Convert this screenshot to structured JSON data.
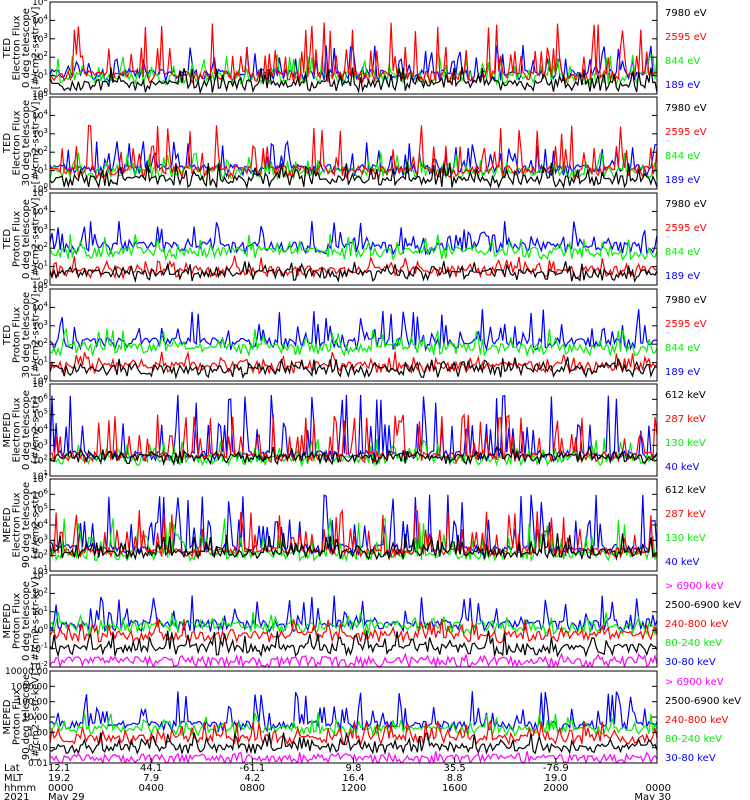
{
  "colors": {
    "blue": "#0000ff",
    "red": "#ff0000",
    "green": "#00ee00",
    "black": "#000000",
    "magenta": "#ff00ff"
  },
  "chart_data": [
    {
      "type": "line",
      "ylabel": [
        "TED",
        "Electron Flux",
        "0 deg telescope",
        "[#/cm2-s-str-eV]"
      ],
      "yscale": "log",
      "ylim": [
        1,
        100000
      ],
      "tick_labels": [
        "10^0",
        "10^1",
        "10^2",
        "10^3",
        "10^4",
        "10^5"
      ],
      "series": [
        {
          "name": "7980 eV",
          "color": "#000000",
          "base": 3,
          "spike": 30
        },
        {
          "name": "2595 eV",
          "color": "#ff0000",
          "base": 10,
          "spike": 8000
        },
        {
          "name": "844 eV",
          "color": "#00ee00",
          "base": 8,
          "spike": 150
        },
        {
          "name": "189 eV",
          "color": "#0000ff",
          "base": 12,
          "spike": 500
        }
      ]
    },
    {
      "type": "line",
      "ylabel": [
        "TED",
        "Electron Flux",
        "30 deg telescope",
        "[#/cm2-s-str-eV]"
      ],
      "yscale": "log",
      "ylim": [
        1,
        100000
      ],
      "tick_labels": [
        "10^0",
        "10^1",
        "10^2",
        "10^3",
        "10^4",
        "10^5"
      ],
      "series": [
        {
          "name": "7980 eV",
          "color": "#000000",
          "base": 3,
          "spike": 30
        },
        {
          "name": "2595 eV",
          "color": "#ff0000",
          "base": 10,
          "spike": 3000
        },
        {
          "name": "844 eV",
          "color": "#00ee00",
          "base": 8,
          "spike": 100
        },
        {
          "name": "189 eV",
          "color": "#0000ff",
          "base": 12,
          "spike": 400
        }
      ]
    },
    {
      "type": "line",
      "ylabel": [
        "TED",
        "Proton Flux",
        "0 deg telescope",
        "[#/cm2-s-str-eV]"
      ],
      "yscale": "log",
      "ylim": [
        1,
        100000
      ],
      "tick_labels": [
        "10^0",
        "10^1",
        "10^2",
        "10^3",
        "10^4",
        "10^5"
      ],
      "series": [
        {
          "name": "7980 eV",
          "color": "#000000",
          "base": 4,
          "spike": 20
        },
        {
          "name": "2595 eV",
          "color": "#ff0000",
          "base": 6,
          "spike": 40
        },
        {
          "name": "844 eV",
          "color": "#00ee00",
          "base": 60,
          "spike": 600
        },
        {
          "name": "189 eV",
          "color": "#0000ff",
          "base": 120,
          "spike": 3000
        }
      ]
    },
    {
      "type": "line",
      "ylabel": [
        "TED",
        "Proton Flux",
        "30 deg telescope",
        "[#/cm2-s-str-eV]"
      ],
      "yscale": "log",
      "ylim": [
        1,
        100000
      ],
      "tick_labels": [
        "10^0",
        "10^1",
        "10^2",
        "10^3",
        "10^4",
        "10^5"
      ],
      "series": [
        {
          "name": "7980 eV",
          "color": "#000000",
          "base": 4,
          "spike": 20
        },
        {
          "name": "2595 eV",
          "color": "#ff0000",
          "base": 6,
          "spike": 40
        },
        {
          "name": "844 eV",
          "color": "#00ee00",
          "base": 60,
          "spike": 700
        },
        {
          "name": "189 eV",
          "color": "#0000ff",
          "base": 120,
          "spike": 8000
        }
      ]
    },
    {
      "type": "line",
      "ylabel": [
        "MEPED",
        "Electron Flux",
        "0 deg telescope",
        "[#/cm2-s-str]"
      ],
      "yscale": "log",
      "ylim": [
        10,
        10000000
      ],
      "tick_labels": [
        "10^1",
        "10^2",
        "10^3",
        "10^4",
        "10^5",
        "10^6",
        "10^7"
      ],
      "series": [
        {
          "name": "612 keV",
          "color": "#000000",
          "base": 150,
          "spike": 800
        },
        {
          "name": "287 keV",
          "color": "#ff0000",
          "base": 200,
          "spike": 100000
        },
        {
          "name": "130 keV",
          "color": "#00ee00",
          "base": 120,
          "spike": 3000
        },
        {
          "name": "40 keV",
          "color": "#0000ff",
          "base": 250,
          "spike": 2000000
        }
      ]
    },
    {
      "type": "line",
      "ylabel": [
        "MEPED",
        "Electron Flux",
        "90 deg telescope",
        "[#/cm2-s-str]"
      ],
      "yscale": "log",
      "ylim": [
        10,
        10000000
      ],
      "tick_labels": [
        "10^1",
        "10^2",
        "10^3",
        "10^4",
        "10^5",
        "10^6",
        "10^7"
      ],
      "series": [
        {
          "name": "612 keV",
          "color": "#000000",
          "base": 150,
          "spike": 3000
        },
        {
          "name": "287 keV",
          "color": "#ff0000",
          "base": 200,
          "spike": 100000
        },
        {
          "name": "130 keV",
          "color": "#00ee00",
          "base": 120,
          "spike": 30000
        },
        {
          "name": "40 keV",
          "color": "#0000ff",
          "base": 300,
          "spike": 1000000
        }
      ]
    },
    {
      "type": "line",
      "ylabel": [
        "MEPED",
        "Proton Flux",
        "0 deg telescope",
        "[#/cm2-s-str-keV]"
      ],
      "yscale": "log",
      "ylim": [
        0.01,
        1000
      ],
      "tick_labels": [
        "10^-2",
        "10^-1",
        "10^0",
        "10^1",
        "10^2",
        "10^3"
      ],
      "series": [
        {
          "name": "> 6900 keV",
          "color": "#ff00ff",
          "base": 0.02,
          "spike": 0.05
        },
        {
          "name": "2500-6900 keV",
          "color": "#000000",
          "base": 0.1,
          "spike": 1
        },
        {
          "name": "240-800 keV",
          "color": "#ff0000",
          "base": 0.5,
          "spike": 5
        },
        {
          "name": "80-240 keV",
          "color": "#00ee00",
          "base": 1.5,
          "spike": 10
        },
        {
          "name": "30-80 keV",
          "color": "#0000ff",
          "base": 2,
          "spike": 80
        }
      ]
    },
    {
      "type": "line",
      "ylabel": [
        "MEPED",
        "Proton Flux",
        "90 deg telescope",
        "[#/cm2-s-str-keV]"
      ],
      "yscale": "log",
      "ylim": [
        0.01,
        10000
      ],
      "tick_labels": [
        "0.01",
        "0.10",
        "1.00",
        "10.00",
        "100.00",
        "1000.00",
        "10000.00"
      ],
      "series": [
        {
          "name": "> 6900 keV",
          "color": "#ff00ff",
          "base": 0.02,
          "spike": 0.06
        },
        {
          "name": "2500-6900 keV",
          "color": "#000000",
          "base": 0.1,
          "spike": 1
        },
        {
          "name": "240-800 keV",
          "color": "#ff0000",
          "base": 0.4,
          "spike": 6
        },
        {
          "name": "80-240 keV",
          "color": "#00ee00",
          "base": 1.5,
          "spike": 20
        },
        {
          "name": "30-80 keV",
          "color": "#0000ff",
          "base": 3,
          "spike": 500
        }
      ]
    }
  ],
  "x_axis": {
    "row_labels": [
      "Lat",
      "MLT",
      "hhmm",
      "2021"
    ],
    "columns": [
      {
        "lat": "12.1",
        "mlt": "19.2",
        "hhmm": "0000",
        "date": "May 29"
      },
      {
        "lat": "44.1",
        "mlt": "7.9",
        "hhmm": "0400",
        "date": ""
      },
      {
        "lat": "-61.1",
        "mlt": "4.2",
        "hhmm": "0800",
        "date": ""
      },
      {
        "lat": "9.8",
        "mlt": "16.4",
        "hhmm": "1200",
        "date": ""
      },
      {
        "lat": "35.5",
        "mlt": "8.8",
        "hhmm": "1600",
        "date": ""
      },
      {
        "lat": "-76.9",
        "mlt": "19.0",
        "hhmm": "2000",
        "date": ""
      },
      {
        "lat": "",
        "mlt": "",
        "hhmm": "0000",
        "date": "May 30"
      }
    ]
  }
}
